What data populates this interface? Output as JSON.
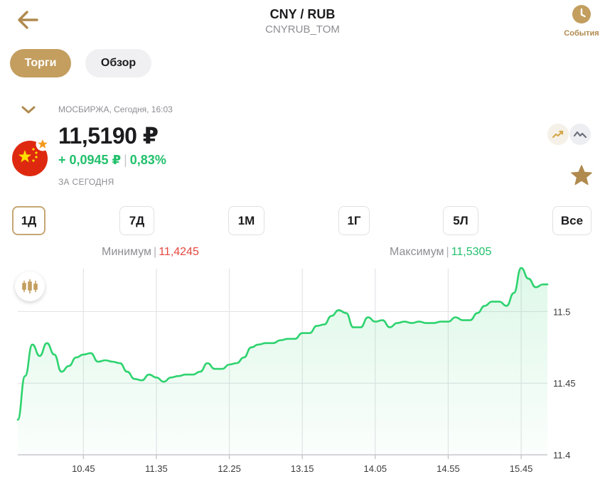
{
  "header": {
    "title": "CNY / RUB",
    "subtitle": "CNYRUB_TOM",
    "events_label": "События"
  },
  "tabs": [
    {
      "label": "Торги",
      "active": true
    },
    {
      "label": "Обзор",
      "active": false
    }
  ],
  "quote": {
    "exchange_time": "МОСБИРЖА, Сегодня, 16:03",
    "price": "11,5190 ₽",
    "change_abs": "+ 0,0945 ₽",
    "change_pct": "0,83%",
    "period_label": "ЗА СЕГОДНЯ"
  },
  "periods": [
    "1Д",
    "7Д",
    "1М",
    "1Г",
    "5Л",
    "Все"
  ],
  "active_period": "1Д",
  "stats": {
    "min_label": "Минимум",
    "min_value": "11,4245",
    "max_label": "Максимум",
    "max_value": "11,5305"
  },
  "icons": {
    "back": "back-arrow-icon",
    "events": "clock-icon",
    "collapse": "chevron-down-icon",
    "flag": "china-flag-icon",
    "favorite_badge": "star-badge-icon",
    "chart_area": "area-chart-icon",
    "chart_line": "line-chart-icon",
    "favorite": "star-icon",
    "candles": "candlestick-icon"
  },
  "colors": {
    "accent": "#c39e5f",
    "up": "#21c06b",
    "down": "#e5483f",
    "line": "#2ed36f"
  },
  "chart_data": {
    "type": "area",
    "x_ticks": [
      "10.45",
      "11.35",
      "12.25",
      "13.15",
      "14.05",
      "14.55",
      "15.45"
    ],
    "y_ticks": [
      "11.4",
      "11.45",
      "11.5"
    ],
    "ylim": [
      11.4,
      11.53
    ],
    "grid": true,
    "x": [
      "10.00",
      "10.05",
      "10.10",
      "10.15",
      "10.20",
      "10.25",
      "10.30",
      "10.35",
      "10.40",
      "10.45",
      "10.50",
      "10.55",
      "11.00",
      "11.05",
      "11.10",
      "11.15",
      "11.20",
      "11.25",
      "11.30",
      "11.35",
      "11.40",
      "11.45",
      "11.50",
      "11.55",
      "12.00",
      "12.05",
      "12.10",
      "12.15",
      "12.20",
      "12.25",
      "12.30",
      "12.35",
      "12.40",
      "12.45",
      "12.50",
      "12.55",
      "13.00",
      "13.05",
      "13.10",
      "13.15",
      "13.20",
      "13.25",
      "13.30",
      "13.35",
      "13.40",
      "13.45",
      "13.50",
      "13.55",
      "14.00",
      "14.05",
      "14.10",
      "14.15",
      "14.20",
      "14.25",
      "14.30",
      "14.35",
      "14.40",
      "14.45",
      "14.50",
      "14.55",
      "15.00",
      "15.05",
      "15.10",
      "15.15",
      "15.20",
      "15.25",
      "15.30",
      "15.35",
      "15.40",
      "15.45",
      "15.50",
      "15.55",
      "16.00",
      "16.03"
    ],
    "series": [
      {
        "values": [
          11.4245,
          11.455,
          11.477,
          11.469,
          11.478,
          11.47,
          11.458,
          11.462,
          11.468,
          11.47,
          11.471,
          11.465,
          11.466,
          11.465,
          11.464,
          11.458,
          11.453,
          11.452,
          11.456,
          11.454,
          11.451,
          11.454,
          11.455,
          11.456,
          11.456,
          11.458,
          11.464,
          11.46,
          11.46,
          11.463,
          11.464,
          11.468,
          11.475,
          11.477,
          11.478,
          11.478,
          11.48,
          11.481,
          11.481,
          11.485,
          11.485,
          11.49,
          11.491,
          11.497,
          11.501,
          11.499,
          11.489,
          11.489,
          11.496,
          11.493,
          11.494,
          11.489,
          11.492,
          11.493,
          11.492,
          11.493,
          11.492,
          11.492,
          11.493,
          11.493,
          11.496,
          11.494,
          11.494,
          11.499,
          11.504,
          11.507,
          11.507,
          11.504,
          11.513,
          11.5305,
          11.523,
          11.517,
          11.519,
          11.519
        ]
      }
    ]
  }
}
